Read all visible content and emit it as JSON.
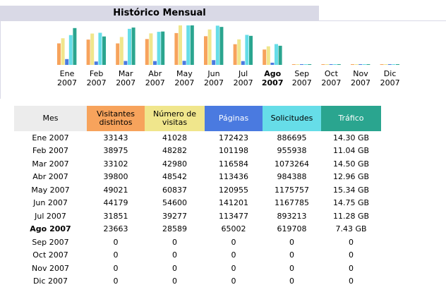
{
  "header": {
    "title": "Histórico Mensual"
  },
  "chart": {
    "months": [
      {
        "month": "Ene",
        "year": "2007"
      },
      {
        "month": "Feb",
        "year": "2007"
      },
      {
        "month": "Mar",
        "year": "2007"
      },
      {
        "month": "Abr",
        "year": "2007"
      },
      {
        "month": "May",
        "year": "2007"
      },
      {
        "month": "Jun",
        "year": "2007"
      },
      {
        "month": "Jul",
        "year": "2007"
      },
      {
        "month": "Ago",
        "year": "2007"
      },
      {
        "month": "Sep",
        "year": "2007"
      },
      {
        "month": "Oct",
        "year": "2007"
      },
      {
        "month": "Nov",
        "year": "2007"
      },
      {
        "month": "Dic",
        "year": "2007"
      }
    ],
    "current": 7
  },
  "table": {
    "columns": [
      {
        "label": "Mes",
        "color": "#ececec"
      },
      {
        "label": "Visitantes distintos",
        "color": "#f7a35c"
      },
      {
        "label": "Número de visitas",
        "color": "#f0e68c"
      },
      {
        "label": "Páginas",
        "color": "#4a7ae0"
      },
      {
        "label": "Solicitudes",
        "color": "#66dde8"
      },
      {
        "label": "Tráfico",
        "color": "#2aa58f"
      }
    ],
    "rows": [
      [
        "Ene 2007",
        33143,
        41028,
        172423,
        886695,
        {
          "value": 14.3,
          "label": "14.30 GB"
        }
      ],
      [
        "Feb 2007",
        38975,
        48282,
        101198,
        955938,
        {
          "value": 11.04,
          "label": "11.04 GB"
        }
      ],
      [
        "Mar 2007",
        33102,
        42980,
        116584,
        1073264,
        {
          "value": 14.5,
          "label": "14.50 GB"
        }
      ],
      [
        "Abr 2007",
        39800,
        48542,
        113436,
        984388,
        {
          "value": 12.96,
          "label": "12.96 GB"
        }
      ],
      [
        "May 2007",
        49021,
        60837,
        120955,
        1175757,
        {
          "value": 15.34,
          "label": "15.34 GB"
        }
      ],
      [
        "Jun 2007",
        44179,
        54600,
        141201,
        1167785,
        {
          "value": 14.75,
          "label": "14.75 GB"
        }
      ],
      [
        "Jul 2007",
        31851,
        39277,
        113477,
        893213,
        {
          "value": 11.28,
          "label": "11.28 GB"
        }
      ],
      [
        "Ago 2007",
        23663,
        28589,
        65002,
        619708,
        {
          "value": 7.43,
          "label": "7.43 GB"
        }
      ],
      [
        "Sep 2007",
        0,
        0,
        0,
        0,
        0
      ],
      [
        "Oct 2007",
        0,
        0,
        0,
        0,
        0
      ],
      [
        "Nov 2007",
        0,
        0,
        0,
        0,
        0
      ],
      [
        "Dic 2007",
        0,
        0,
        0,
        0,
        0
      ]
    ]
  }
}
